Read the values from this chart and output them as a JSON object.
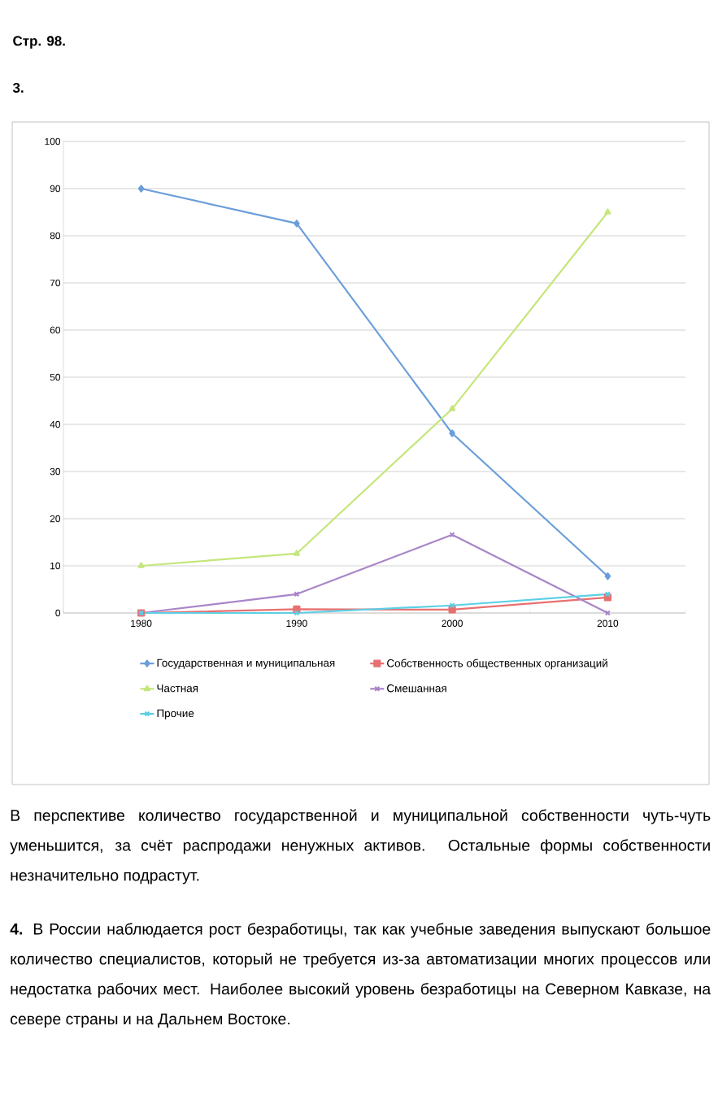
{
  "chart_data": {
    "type": "line",
    "title": "Стр. 98.",
    "subtitle": "3.",
    "categories": [
      "1980",
      "1990",
      "2000",
      "2010"
    ],
    "series": [
      {
        "name": "Государственная и муниципальная",
        "color": "#6a9edb",
        "marker": "diamond",
        "values": [
          90,
          82.6,
          38.1,
          7.8
        ]
      },
      {
        "name": "Собственность общественных организаций",
        "color": "#e87070",
        "marker": "square",
        "values": [
          0,
          0.8,
          0.7,
          3.3
        ]
      },
      {
        "name": "Частная",
        "color": "#c5e67c",
        "marker": "triangle",
        "values": [
          10,
          12.6,
          43.3,
          85
        ]
      },
      {
        "name": "Смешанная",
        "color": "#a985c8",
        "marker": "cross",
        "values": [
          0,
          4,
          16.6,
          0
        ]
      },
      {
        "name": "Прочие",
        "color": "#5ccfe6",
        "marker": "cross",
        "values": [
          0,
          0,
          1.6,
          4
        ]
      }
    ],
    "ylim": [
      0,
      100
    ],
    "yticks": [
      0,
      10,
      20,
      30,
      40,
      50,
      60,
      70,
      80,
      90,
      100
    ],
    "grid": "y",
    "legend": "bottom",
    "annotations": [
      "В перспективе количество государственной и муниципальной собственности чуть-чуть уменьшится, за счёт распродажи ненужных активов. Остальные формы собственности незначительно подрастут.",
      "**4.** В России наблюдается рост безработицы, так как учебные заведения выпускают большое количество специалистов, который не требуется из-за автоматизации многих процессов или недостатка рабочих мест. Наиболее высокий уровень безработицы на Северном Кавказе, на севере страны и на Дальнем Востоке."
    ]
  }
}
